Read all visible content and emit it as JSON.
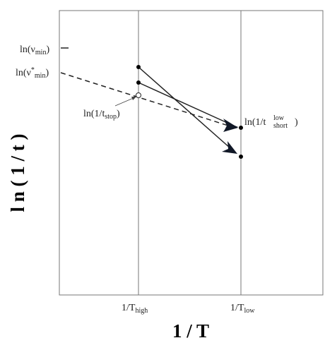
{
  "axes": {
    "y_title": "l n ( 1 / t )",
    "x_title": "1 / T"
  },
  "x_labels": [
    {
      "text": "1/T",
      "sub": "high"
    },
    {
      "text": "1/T",
      "sub": "low"
    }
  ],
  "y_labels": [
    {
      "text": "ln(ν",
      "sub": "min",
      "close": ")"
    },
    {
      "text": "ln(ν",
      "sup": "*",
      "sub": "min",
      "close": ")"
    }
  ],
  "annotations": [
    {
      "text": "ln(1/t",
      "sub": "stop",
      "close": ")"
    },
    {
      "text": "ln(1/t",
      "sup": "low",
      "sub": "short",
      "close": ")"
    }
  ]
}
